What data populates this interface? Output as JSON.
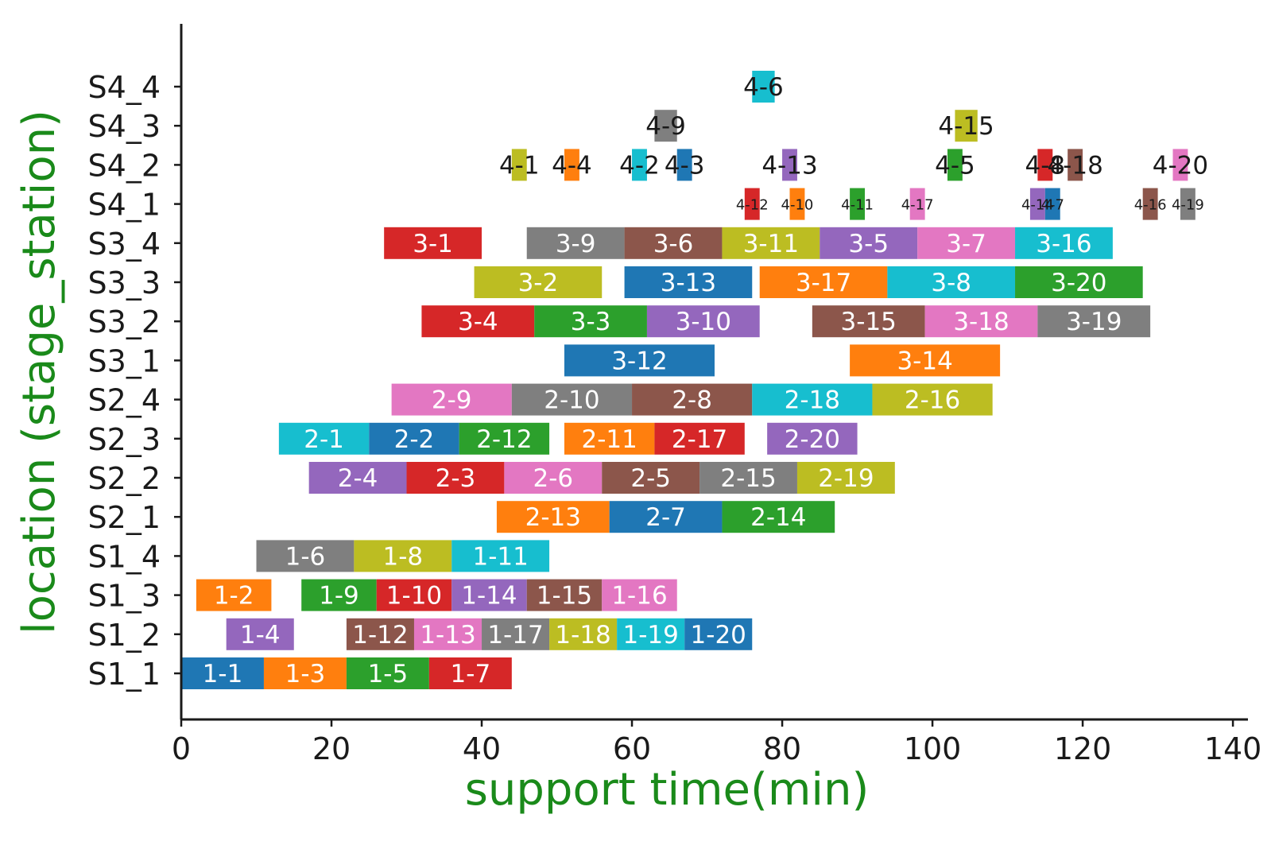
{
  "chart_data": {
    "type": "gantt",
    "xlabel": "support time(min)",
    "ylabel": "location (stage_station)",
    "label_color": "#1a8a1a",
    "xlim": [
      0,
      142
    ],
    "xticks": [
      0,
      20,
      40,
      60,
      80,
      100,
      120,
      140
    ],
    "rows": [
      "S1_1",
      "S1_2",
      "S1_3",
      "S1_4",
      "S2_1",
      "S2_2",
      "S2_3",
      "S2_4",
      "S3_1",
      "S3_2",
      "S3_3",
      "S3_4",
      "S4_1",
      "S4_2",
      "S4_3",
      "S4_4"
    ],
    "palette": {
      "blue": "#1f77b4",
      "orange": "#ff7f0e",
      "green": "#2ca02c",
      "red": "#d62728",
      "purple": "#9467bd",
      "brown": "#8c564b",
      "pink": "#e377c2",
      "gray": "#7f7f7f",
      "olive": "#bcbd22",
      "cyan": "#17becf"
    },
    "tasks": [
      {
        "label": "1-1",
        "row": "S1_1",
        "start": 0,
        "end": 11,
        "color": "blue"
      },
      {
        "label": "1-3",
        "row": "S1_1",
        "start": 11,
        "end": 22,
        "color": "orange"
      },
      {
        "label": "1-5",
        "row": "S1_1",
        "start": 22,
        "end": 33,
        "color": "green"
      },
      {
        "label": "1-7",
        "row": "S1_1",
        "start": 33,
        "end": 44,
        "color": "red"
      },
      {
        "label": "1-4",
        "row": "S1_2",
        "start": 6,
        "end": 15,
        "color": "purple"
      },
      {
        "label": "1-12",
        "row": "S1_2",
        "start": 22,
        "end": 31,
        "color": "brown"
      },
      {
        "label": "1-13",
        "row": "S1_2",
        "start": 31,
        "end": 40,
        "color": "pink"
      },
      {
        "label": "1-17",
        "row": "S1_2",
        "start": 40,
        "end": 49,
        "color": "gray"
      },
      {
        "label": "1-18",
        "row": "S1_2",
        "start": 49,
        "end": 58,
        "color": "olive"
      },
      {
        "label": "1-19",
        "row": "S1_2",
        "start": 58,
        "end": 67,
        "color": "cyan"
      },
      {
        "label": "1-20",
        "row": "S1_2",
        "start": 67,
        "end": 76,
        "color": "blue"
      },
      {
        "label": "1-2",
        "row": "S1_3",
        "start": 2,
        "end": 12,
        "color": "orange"
      },
      {
        "label": "1-9",
        "row": "S1_3",
        "start": 16,
        "end": 26,
        "color": "green"
      },
      {
        "label": "1-10",
        "row": "S1_3",
        "start": 26,
        "end": 36,
        "color": "red"
      },
      {
        "label": "1-14",
        "row": "S1_3",
        "start": 36,
        "end": 46,
        "color": "purple"
      },
      {
        "label": "1-15",
        "row": "S1_3",
        "start": 46,
        "end": 56,
        "color": "brown"
      },
      {
        "label": "1-16",
        "row": "S1_3",
        "start": 56,
        "end": 66,
        "color": "pink"
      },
      {
        "label": "1-6",
        "row": "S1_4",
        "start": 10,
        "end": 23,
        "color": "gray"
      },
      {
        "label": "1-8",
        "row": "S1_4",
        "start": 23,
        "end": 36,
        "color": "olive"
      },
      {
        "label": "1-11",
        "row": "S1_4",
        "start": 36,
        "end": 49,
        "color": "cyan"
      },
      {
        "label": "2-13",
        "row": "S2_1",
        "start": 42,
        "end": 57,
        "color": "orange"
      },
      {
        "label": "2-7",
        "row": "S2_1",
        "start": 57,
        "end": 72,
        "color": "blue"
      },
      {
        "label": "2-14",
        "row": "S2_1",
        "start": 72,
        "end": 87,
        "color": "green"
      },
      {
        "label": "2-4",
        "row": "S2_2",
        "start": 17,
        "end": 30,
        "color": "purple"
      },
      {
        "label": "2-3",
        "row": "S2_2",
        "start": 30,
        "end": 43,
        "color": "red"
      },
      {
        "label": "2-6",
        "row": "S2_2",
        "start": 43,
        "end": 56,
        "color": "pink"
      },
      {
        "label": "2-5",
        "row": "S2_2",
        "start": 56,
        "end": 69,
        "color": "brown"
      },
      {
        "label": "2-15",
        "row": "S2_2",
        "start": 69,
        "end": 82,
        "color": "gray"
      },
      {
        "label": "2-19",
        "row": "S2_2",
        "start": 82,
        "end": 95,
        "color": "olive"
      },
      {
        "label": "2-1",
        "row": "S2_3",
        "start": 13,
        "end": 25,
        "color": "cyan"
      },
      {
        "label": "2-2",
        "row": "S2_3",
        "start": 25,
        "end": 37,
        "color": "blue"
      },
      {
        "label": "2-12",
        "row": "S2_3",
        "start": 37,
        "end": 49,
        "color": "green"
      },
      {
        "label": "2-11",
        "row": "S2_3",
        "start": 51,
        "end": 63,
        "color": "orange"
      },
      {
        "label": "2-17",
        "row": "S2_3",
        "start": 63,
        "end": 75,
        "color": "red"
      },
      {
        "label": "2-20",
        "row": "S2_3",
        "start": 78,
        "end": 90,
        "color": "purple"
      },
      {
        "label": "2-9",
        "row": "S2_4",
        "start": 28,
        "end": 44,
        "color": "pink"
      },
      {
        "label": "2-10",
        "row": "S2_4",
        "start": 44,
        "end": 60,
        "color": "gray"
      },
      {
        "label": "2-8",
        "row": "S2_4",
        "start": 60,
        "end": 76,
        "color": "brown"
      },
      {
        "label": "2-18",
        "row": "S2_4",
        "start": 76,
        "end": 92,
        "color": "cyan"
      },
      {
        "label": "2-16",
        "row": "S2_4",
        "start": 92,
        "end": 108,
        "color": "olive"
      },
      {
        "label": "3-12",
        "row": "S3_1",
        "start": 51,
        "end": 71,
        "color": "blue"
      },
      {
        "label": "3-14",
        "row": "S3_1",
        "start": 89,
        "end": 109,
        "color": "orange"
      },
      {
        "label": "3-4",
        "row": "S3_2",
        "start": 32,
        "end": 47,
        "color": "red"
      },
      {
        "label": "3-3",
        "row": "S3_2",
        "start": 47,
        "end": 62,
        "color": "green"
      },
      {
        "label": "3-10",
        "row": "S3_2",
        "start": 62,
        "end": 77,
        "color": "purple"
      },
      {
        "label": "3-15",
        "row": "S3_2",
        "start": 84,
        "end": 99,
        "color": "brown"
      },
      {
        "label": "3-18",
        "row": "S3_2",
        "start": 99,
        "end": 114,
        "color": "pink"
      },
      {
        "label": "3-19",
        "row": "S3_2",
        "start": 114,
        "end": 129,
        "color": "gray"
      },
      {
        "label": "3-2",
        "row": "S3_3",
        "start": 39,
        "end": 56,
        "color": "olive"
      },
      {
        "label": "3-13",
        "row": "S3_3",
        "start": 59,
        "end": 76,
        "color": "blue"
      },
      {
        "label": "3-17",
        "row": "S3_3",
        "start": 77,
        "end": 94,
        "color": "orange"
      },
      {
        "label": "3-8",
        "row": "S3_3",
        "start": 94,
        "end": 111,
        "color": "cyan"
      },
      {
        "label": "3-20",
        "row": "S3_3",
        "start": 111,
        "end": 128,
        "color": "green"
      },
      {
        "label": "3-1",
        "row": "S3_4",
        "start": 27,
        "end": 40,
        "color": "red"
      },
      {
        "label": "3-9",
        "row": "S3_4",
        "start": 46,
        "end": 59,
        "color": "gray"
      },
      {
        "label": "3-6",
        "row": "S3_4",
        "start": 59,
        "end": 72,
        "color": "brown"
      },
      {
        "label": "3-11",
        "row": "S3_4",
        "start": 72,
        "end": 85,
        "color": "olive"
      },
      {
        "label": "3-5",
        "row": "S3_4",
        "start": 85,
        "end": 98,
        "color": "purple"
      },
      {
        "label": "3-7",
        "row": "S3_4",
        "start": 98,
        "end": 111,
        "color": "pink"
      },
      {
        "label": "3-16",
        "row": "S3_4",
        "start": 111,
        "end": 124,
        "color": "cyan"
      },
      {
        "label": "4-12",
        "row": "S4_1",
        "start": 75,
        "end": 77,
        "color": "red",
        "small": true
      },
      {
        "label": "4-10",
        "row": "S4_1",
        "start": 81,
        "end": 83,
        "color": "orange",
        "small": true
      },
      {
        "label": "4-11",
        "row": "S4_1",
        "start": 89,
        "end": 91,
        "color": "green",
        "small": true
      },
      {
        "label": "4-17",
        "row": "S4_1",
        "start": 97,
        "end": 99,
        "color": "pink",
        "small": true
      },
      {
        "label": "4-14",
        "row": "S4_1",
        "start": 113,
        "end": 115,
        "color": "purple",
        "small": true
      },
      {
        "label": "4-7",
        "row": "S4_1",
        "start": 115,
        "end": 117,
        "color": "blue",
        "small": true
      },
      {
        "label": "4-16",
        "row": "S4_1",
        "start": 128,
        "end": 130,
        "color": "brown",
        "small": true
      },
      {
        "label": "4-19",
        "row": "S4_1",
        "start": 133,
        "end": 135,
        "color": "gray",
        "small": true
      },
      {
        "label": "4-1",
        "row": "S4_2",
        "start": 44,
        "end": 46,
        "color": "olive"
      },
      {
        "label": "4-4",
        "row": "S4_2",
        "start": 51,
        "end": 53,
        "color": "orange"
      },
      {
        "label": "4-2",
        "row": "S4_2",
        "start": 60,
        "end": 62,
        "color": "cyan"
      },
      {
        "label": "4-3",
        "row": "S4_2",
        "start": 66,
        "end": 68,
        "color": "blue"
      },
      {
        "label": "4-13",
        "row": "S4_2",
        "start": 80,
        "end": 82,
        "color": "purple"
      },
      {
        "label": "4-5",
        "row": "S4_2",
        "start": 102,
        "end": 104,
        "color": "green"
      },
      {
        "label": "4-8",
        "row": "S4_2",
        "start": 114,
        "end": 116,
        "color": "red"
      },
      {
        "label": "4-18",
        "row": "S4_2",
        "start": 118,
        "end": 120,
        "color": "brown"
      },
      {
        "label": "4-20",
        "row": "S4_2",
        "start": 132,
        "end": 134,
        "color": "pink"
      },
      {
        "label": "4-9",
        "row": "S4_3",
        "start": 63,
        "end": 66,
        "color": "gray"
      },
      {
        "label": "4-15",
        "row": "S4_3",
        "start": 103,
        "end": 106,
        "color": "olive"
      },
      {
        "label": "4-6",
        "row": "S4_4",
        "start": 76,
        "end": 79,
        "color": "cyan"
      }
    ]
  }
}
